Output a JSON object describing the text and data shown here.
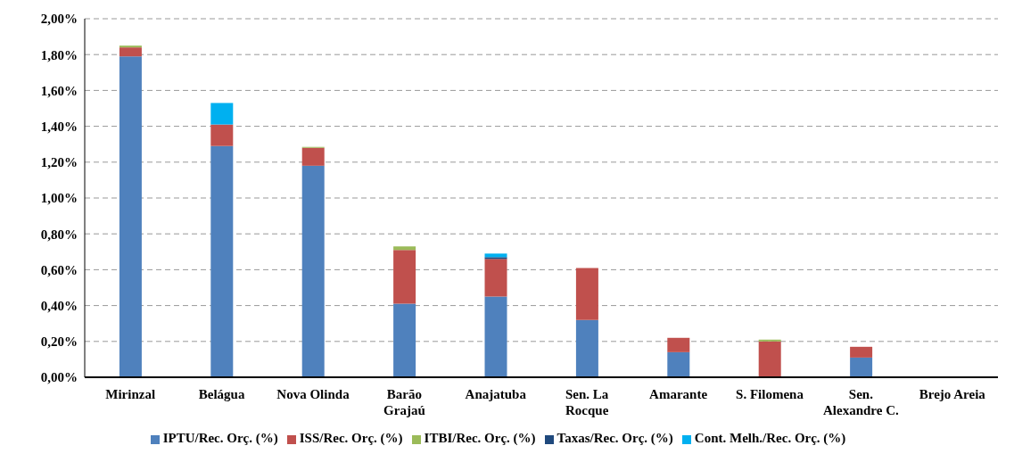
{
  "chart_data": {
    "type": "bar",
    "stacked": true,
    "categories": [
      "Mirinzal",
      "Belágua",
      "Nova Olinda",
      "Barão\nGrajaú",
      "Anajatuba",
      "Sen. La\nRocque",
      "Amarante",
      "S. Filomena",
      "Sen.\nAlexandre C.",
      "Brejo Areia"
    ],
    "series": [
      {
        "name": "IPTU/Rec. Orç. (%)",
        "color": "#4f81bd",
        "values": [
          1.79,
          1.29,
          1.18,
          0.41,
          0.45,
          0.32,
          0.14,
          0,
          0.11,
          0
        ]
      },
      {
        "name": "ISS/Rec. Orç. (%)",
        "color": "#c0504d",
        "values": [
          0.05,
          0.12,
          0.1,
          0.3,
          0.21,
          0.29,
          0.08,
          0.2,
          0.06,
          0
        ]
      },
      {
        "name": "ITBI/Rec. Orç. (%)",
        "color": "#9bbb59",
        "values": [
          0.01,
          0,
          0.005,
          0.02,
          0,
          0,
          0,
          0.01,
          0,
          0
        ]
      },
      {
        "name": "Taxas/Rec. Orç. (%)",
        "color": "#1f497d",
        "values": [
          0,
          0,
          0,
          0,
          0.01,
          0,
          0,
          0,
          0,
          0
        ]
      },
      {
        "name": "Cont. Melh./Rec. Orç. (%)",
        "color": "#00b0f0",
        "values": [
          0,
          0.12,
          0,
          0,
          0.02,
          0,
          0,
          0,
          0,
          0
        ]
      }
    ],
    "ylim": [
      0,
      2
    ],
    "yticks": [
      {
        "value": 0,
        "label": "0,00%"
      },
      {
        "value": 0.2,
        "label": "0,20%"
      },
      {
        "value": 0.4,
        "label": "0,40%"
      },
      {
        "value": 0.6,
        "label": "0,60%"
      },
      {
        "value": 0.8,
        "label": "0,80%"
      },
      {
        "value": 1,
        "label": "1,00%"
      },
      {
        "value": 1.2,
        "label": "1,20%"
      },
      {
        "value": 1.4,
        "label": "1,40%"
      },
      {
        "value": 1.6,
        "label": "1,60%"
      },
      {
        "value": 1.8,
        "label": "1,80%"
      },
      {
        "value": 2,
        "label": "2,00%"
      }
    ],
    "grid": "y",
    "legend": "bottom"
  }
}
